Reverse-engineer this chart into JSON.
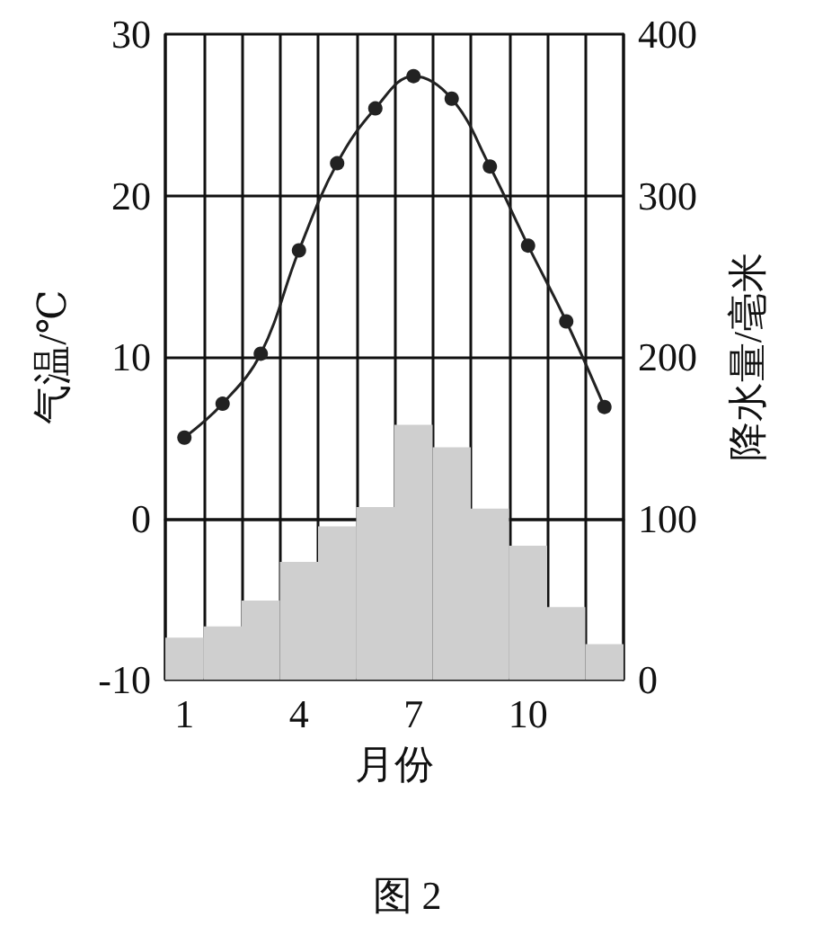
{
  "chart_data": {
    "type": "bar",
    "xlabel": "月份",
    "ylabel": "气温/℃",
    "y2label": "降水量/毫米",
    "annotations": [
      "图 2"
    ],
    "categories": [
      "1",
      null,
      null,
      "4",
      null,
      null,
      "7",
      null,
      null,
      "10",
      null,
      null
    ],
    "series": [
      {
        "axis": "y2",
        "color": "#cfcfcf",
        "values": [
          26,
          33,
          49,
          73,
          95,
          107,
          158,
          144,
          106,
          83,
          45,
          22
        ]
      },
      {
        "type": "line",
        "axis": "y",
        "color": "#222222",
        "marker": "circle",
        "line_style": "solid",
        "values": [
          5,
          7.1,
          10.2,
          16.6,
          22,
          25.4,
          27.4,
          26,
          21.8,
          16.9,
          12.2,
          6.9
        ]
      }
    ],
    "ylim": [
      -10,
      30
    ],
    "yticks": [
      -10,
      0,
      10,
      20,
      30
    ],
    "y2lim": [
      0,
      400
    ],
    "y2ticks": [
      0,
      100,
      200,
      300,
      400
    ],
    "grid": true
  }
}
